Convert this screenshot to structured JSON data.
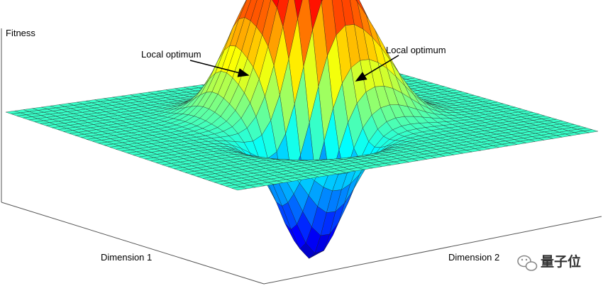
{
  "labels": {
    "fitness": "Fitness",
    "dimension1": "Dimension 1",
    "dimension2": "Dimension 2",
    "annotation_left": "Local optimum",
    "annotation_right": "Local optimum"
  },
  "watermark": {
    "text": "量子位",
    "icon": "wechat-icon"
  },
  "surface": {
    "grid_resolution": 40,
    "colormap": "jet",
    "peaks": [
      {
        "u": 0.0,
        "v": 0.05,
        "height": 1.0
      },
      {
        "u": -0.3,
        "v": -0.05,
        "height": 0.62
      },
      {
        "u": 0.05,
        "v": 0.32,
        "height": 0.42
      },
      {
        "u": 0.28,
        "v": -0.12,
        "height": -0.75
      }
    ]
  },
  "colors": {
    "axis": "#555555",
    "grid": "#222222",
    "wechat_badge": "#888888"
  }
}
